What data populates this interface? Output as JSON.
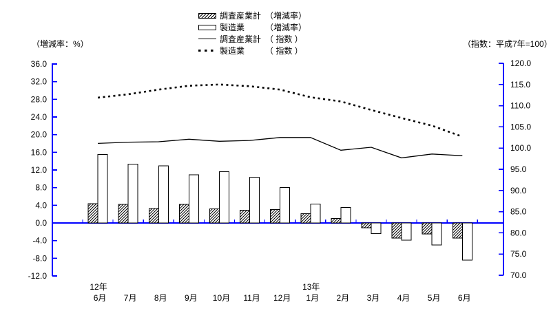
{
  "chart_data": {
    "type": "combo-bar-line",
    "title": "",
    "categories": [
      "6月",
      "7月",
      "8月",
      "9月",
      "10月",
      "11月",
      "12月",
      "1月",
      "2月",
      "3月",
      "4月",
      "5月",
      "6月"
    ],
    "year_markers": [
      {
        "index": 0,
        "label": "12年"
      },
      {
        "index": 7,
        "label": "13年"
      }
    ],
    "left_axis": {
      "title": "（増減率：%）",
      "min": -12.0,
      "max": 36.0,
      "step": 4.0
    },
    "right_axis": {
      "title": "（指数：平成7年=100）",
      "min": 70.0,
      "max": 120.0,
      "step": 5.0
    },
    "bar_series": [
      {
        "name": "調査産業計（増減率）",
        "style": "hatched",
        "axis": "left",
        "values": [
          4.4,
          4.2,
          3.3,
          4.2,
          3.2,
          2.9,
          3.0,
          2.1,
          1.0,
          -1.1,
          -3.4,
          -2.5,
          -3.4
        ]
      },
      {
        "name": "製造業（増減率）",
        "style": "open",
        "axis": "left",
        "values": [
          15.5,
          13.3,
          12.9,
          10.9,
          11.6,
          10.4,
          8.0,
          4.3,
          3.5,
          -2.4,
          -3.9,
          -5.0,
          -8.4
        ]
      }
    ],
    "line_series": [
      {
        "name": "調査産業計（指数）",
        "style": "solid",
        "axis": "right",
        "values": [
          101.1,
          101.4,
          101.5,
          102.1,
          101.6,
          101.8,
          102.5,
          102.5,
          99.5,
          100.2,
          97.7,
          98.6,
          98.2
        ]
      },
      {
        "name": "製造業（指数）",
        "style": "dotted",
        "axis": "right",
        "values": [
          111.9,
          112.7,
          113.8,
          114.7,
          115.0,
          114.6,
          113.8,
          112.0,
          111.0,
          109.0,
          107.1,
          105.3,
          102.7
        ]
      }
    ],
    "colors": {
      "axis": "#0000ff",
      "bar_fill": "#ffffff",
      "stroke": "#000000"
    }
  },
  "legend": {
    "items": [
      {
        "swatch": "hatched",
        "label": "調査産業計",
        "qualifier": "（増減率）"
      },
      {
        "swatch": "open",
        "label": "製造業",
        "qualifier": "（増減率）"
      },
      {
        "swatch": "solid-line",
        "label": "調査産業計",
        "qualifier": "（ 指数 ）"
      },
      {
        "swatch": "dotted-line",
        "label": "製造業",
        "qualifier": "（ 指数 ）"
      }
    ]
  }
}
